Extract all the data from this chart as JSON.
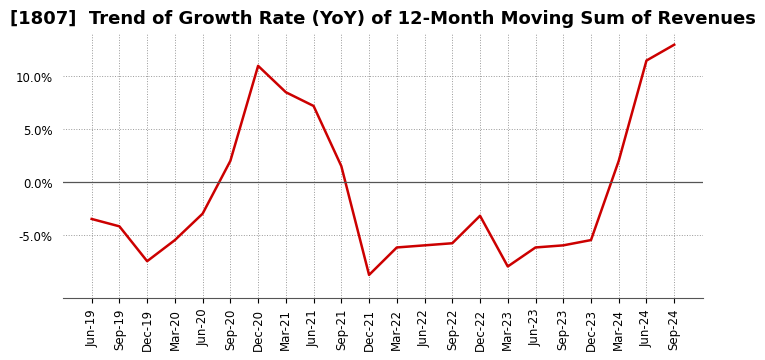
{
  "title": "[1807]  Trend of Growth Rate (YoY) of 12-Month Moving Sum of Revenues",
  "x_labels": [
    "Jun-19",
    "Sep-19",
    "Dec-19",
    "Mar-20",
    "Jun-20",
    "Sep-20",
    "Dec-20",
    "Mar-21",
    "Jun-21",
    "Sep-21",
    "Dec-21",
    "Mar-22",
    "Jun-22",
    "Sep-22",
    "Dec-22",
    "Mar-23",
    "Jun-23",
    "Sep-23",
    "Dec-23",
    "Mar-24",
    "Jun-24",
    "Sep-24"
  ],
  "y_values": [
    -3.5,
    -4.2,
    -7.5,
    -5.5,
    -3.0,
    2.0,
    11.0,
    8.5,
    7.2,
    1.5,
    -8.8,
    -6.2,
    -6.0,
    -5.8,
    -3.2,
    -8.0,
    -6.2,
    -6.0,
    -5.5,
    2.0,
    11.5,
    13.0
  ],
  "line_color": "#cc0000",
  "line_width": 1.8,
  "grid_color": "#999999",
  "background_color": "#ffffff",
  "plot_bg_color": "#ffffff",
  "ylim": [
    -11,
    14
  ],
  "yticks": [
    -5.0,
    0.0,
    5.0,
    10.0
  ],
  "title_fontsize": 13,
  "tick_fontsize": 8.5
}
